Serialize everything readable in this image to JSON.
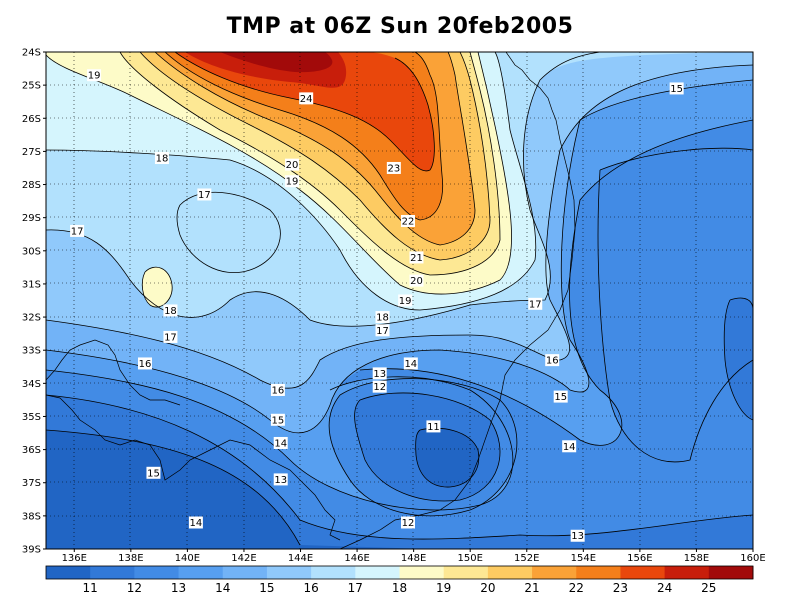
{
  "title": "TMP at 06Z Sun 20feb2005",
  "map": {
    "lon_range": [
      135,
      160
    ],
    "lat_range": [
      -39,
      -24
    ],
    "grid": "dotted",
    "lat_ticks": [
      "24S",
      "25S",
      "26S",
      "27S",
      "28S",
      "29S",
      "30S",
      "31S",
      "32S",
      "33S",
      "34S",
      "35S",
      "36S",
      "37S",
      "38S",
      "39S"
    ],
    "lon_ticks": [
      "136E",
      "138E",
      "140E",
      "142E",
      "144E",
      "146E",
      "148E",
      "150E",
      "152E",
      "154E",
      "156E",
      "158E",
      "160E"
    ],
    "contour_labels": [
      {
        "text": "19",
        "lon": 136.7,
        "lat": -24.7
      },
      {
        "text": "24",
        "lon": 144.2,
        "lat": -25.4
      },
      {
        "text": "15",
        "lon": 157.3,
        "lat": -25.1
      },
      {
        "text": "18",
        "lon": 139.1,
        "lat": -27.2
      },
      {
        "text": "20",
        "lon": 143.7,
        "lat": -27.4
      },
      {
        "text": "23",
        "lon": 147.3,
        "lat": -27.5
      },
      {
        "text": "19",
        "lon": 143.7,
        "lat": -27.9
      },
      {
        "text": "17",
        "lon": 140.6,
        "lat": -28.3
      },
      {
        "text": "22",
        "lon": 147.8,
        "lat": -29.1
      },
      {
        "text": "17",
        "lon": 136.1,
        "lat": -29.4
      },
      {
        "text": "21",
        "lon": 148.1,
        "lat": -30.2
      },
      {
        "text": "20",
        "lon": 148.1,
        "lat": -30.9
      },
      {
        "text": "19",
        "lon": 147.7,
        "lat": -31.5
      },
      {
        "text": "17",
        "lon": 152.3,
        "lat": -31.6
      },
      {
        "text": "18",
        "lon": 139.4,
        "lat": -31.8
      },
      {
        "text": "18",
        "lon": 146.9,
        "lat": -32.0
      },
      {
        "text": "17",
        "lon": 139.4,
        "lat": -32.6
      },
      {
        "text": "17",
        "lon": 146.9,
        "lat": -32.4
      },
      {
        "text": "16",
        "lon": 138.5,
        "lat": -33.4
      },
      {
        "text": "14",
        "lon": 147.9,
        "lat": -33.4
      },
      {
        "text": "16",
        "lon": 152.9,
        "lat": -33.3
      },
      {
        "text": "13",
        "lon": 146.8,
        "lat": -33.7
      },
      {
        "text": "12",
        "lon": 146.8,
        "lat": -34.1
      },
      {
        "text": "16",
        "lon": 143.2,
        "lat": -34.2
      },
      {
        "text": "15",
        "lon": 153.2,
        "lat": -34.4
      },
      {
        "text": "15",
        "lon": 143.2,
        "lat": -35.1
      },
      {
        "text": "11",
        "lon": 148.7,
        "lat": -35.3
      },
      {
        "text": "14",
        "lon": 143.3,
        "lat": -35.8
      },
      {
        "text": "14",
        "lon": 153.5,
        "lat": -35.9
      },
      {
        "text": "15",
        "lon": 138.8,
        "lat": -36.7
      },
      {
        "text": "13",
        "lon": 143.3,
        "lat": -36.9
      },
      {
        "text": "14",
        "lon": 140.3,
        "lat": -38.2
      },
      {
        "text": "12",
        "lon": 147.8,
        "lat": -38.2
      },
      {
        "text": "13",
        "lon": 153.8,
        "lat": -38.6
      }
    ]
  },
  "colorbar": {
    "labels": [
      "11",
      "12",
      "13",
      "14",
      "15",
      "16",
      "17",
      "18",
      "19",
      "20",
      "21",
      "22",
      "23",
      "24",
      "25"
    ],
    "colors": [
      "#2165c4",
      "#3279d8",
      "#428be5",
      "#579ff0",
      "#72b3f7",
      "#90c9fb",
      "#b2e1fd",
      "#d5f5fd",
      "#fdfbc8",
      "#fde894",
      "#fdcb62",
      "#faa237",
      "#f47f1a",
      "#e9470c",
      "#c81e0b",
      "#a20a0a"
    ]
  }
}
